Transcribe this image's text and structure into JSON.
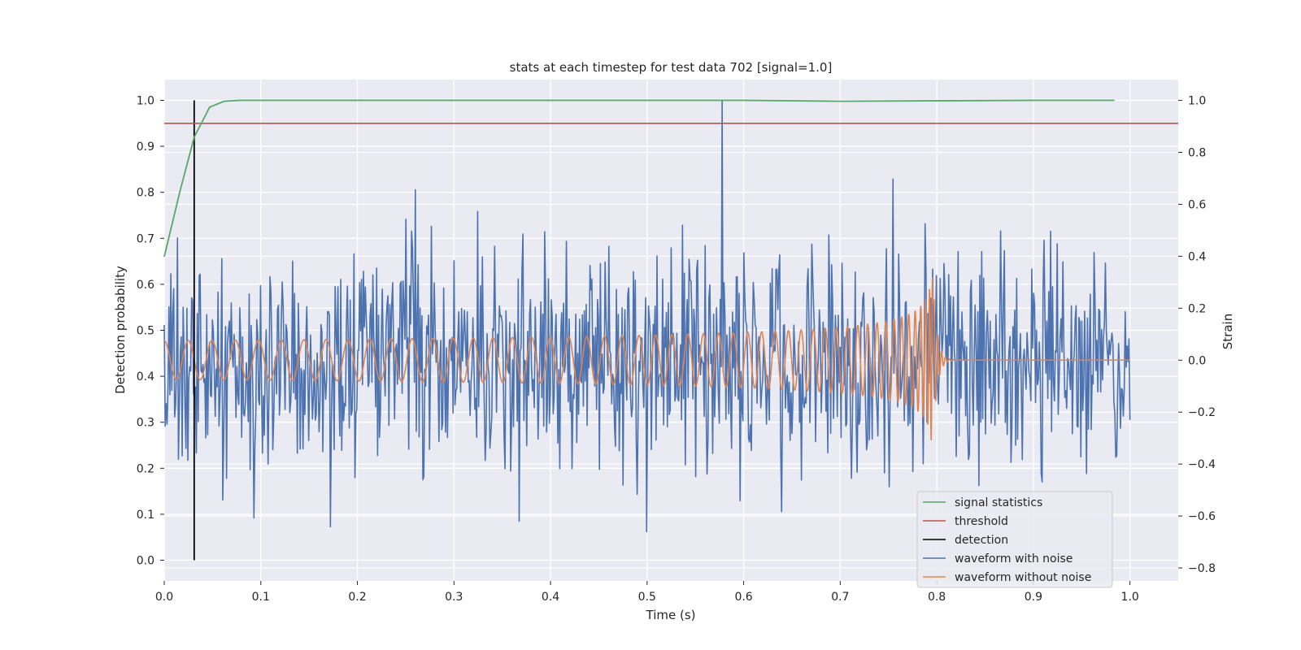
{
  "chart_data": {
    "type": "line",
    "title": "stats at each timestep for test data 702 [signal=1.0]",
    "xlabel": "Time (s)",
    "ylabel_left": "Detection probability",
    "ylabel_right": "Strain",
    "xlim": [
      0.0,
      1.05
    ],
    "ylim_left": [
      -0.045,
      1.045
    ],
    "ylim_right": [
      -0.85,
      1.08
    ],
    "x_ticks": [
      0.0,
      0.1,
      0.2,
      0.3,
      0.4,
      0.5,
      0.6,
      0.7,
      0.8,
      0.9,
      1.0
    ],
    "x_tick_labels": [
      "0.0",
      "0.1",
      "0.2",
      "0.3",
      "0.4",
      "0.5",
      "0.6",
      "0.7",
      "0.8",
      "0.9",
      "1.0"
    ],
    "y_left_ticks": [
      0.0,
      0.1,
      0.2,
      0.3,
      0.4,
      0.5,
      0.6,
      0.7,
      0.8,
      0.9,
      1.0
    ],
    "y_left_tick_labels": [
      "0.0",
      "0.1",
      "0.2",
      "0.3",
      "0.4",
      "0.5",
      "0.6",
      "0.7",
      "0.8",
      "0.9",
      "1.0"
    ],
    "y_right_ticks": [
      -0.8,
      -0.6,
      -0.4,
      -0.2,
      0.0,
      0.2,
      0.4,
      0.6,
      0.8,
      1.0
    ],
    "y_right_tick_labels": [
      "−0.8",
      "−0.6",
      "−0.4",
      "−0.2",
      "0.0",
      "0.2",
      "0.4",
      "0.6",
      "0.8",
      "1.0"
    ],
    "grid": true,
    "legend_position": "lower-right",
    "series": [
      {
        "name": "signal statistics",
        "axis": "left",
        "color": "#55a868",
        "x": [
          0.0,
          0.016,
          0.031,
          0.047,
          0.062,
          0.078,
          0.2,
          0.4,
          0.6,
          0.7,
          0.8,
          0.9,
          0.984
        ],
        "y": [
          0.66,
          0.8,
          0.92,
          0.985,
          0.998,
          1.0,
          1.0,
          1.0,
          1.0,
          0.998,
          0.999,
          1.0,
          1.0
        ]
      },
      {
        "name": "threshold",
        "axis": "left",
        "color": "#c44e52",
        "x": [
          0.0,
          1.05
        ],
        "y": [
          0.95,
          0.95
        ]
      },
      {
        "name": "detection",
        "axis": "left",
        "color": "#000000",
        "x": [
          0.031,
          0.031
        ],
        "y": [
          0.0,
          1.0
        ]
      },
      {
        "name": "waveform with noise",
        "axis": "right",
        "color": "#4c72b0",
        "x_start": 0.0,
        "x_end": 1.0,
        "peak": {
          "x": 0.578,
          "y": 1.0
        },
        "noise_std": 0.22
      },
      {
        "name": "waveform without noise",
        "axis": "right",
        "color": "#dd8452",
        "x_start": 0.0,
        "x_end": 1.0,
        "merger_time": 0.797,
        "start_frequency_hz": 40,
        "start_amplitude": 0.075,
        "peak_amplitude": 0.32
      }
    ]
  },
  "legend": {
    "items": [
      {
        "label": "signal statistics",
        "color": "#55a868"
      },
      {
        "label": "threshold",
        "color": "#c44e52"
      },
      {
        "label": "detection",
        "color": "#000000"
      },
      {
        "label": "waveform with noise",
        "color": "#4c72b0"
      },
      {
        "label": "waveform without noise",
        "color": "#dd8452"
      }
    ]
  },
  "colors": {
    "plot_background": "#eaeaf2",
    "grid": "#ffffff",
    "text": "#262626"
  }
}
